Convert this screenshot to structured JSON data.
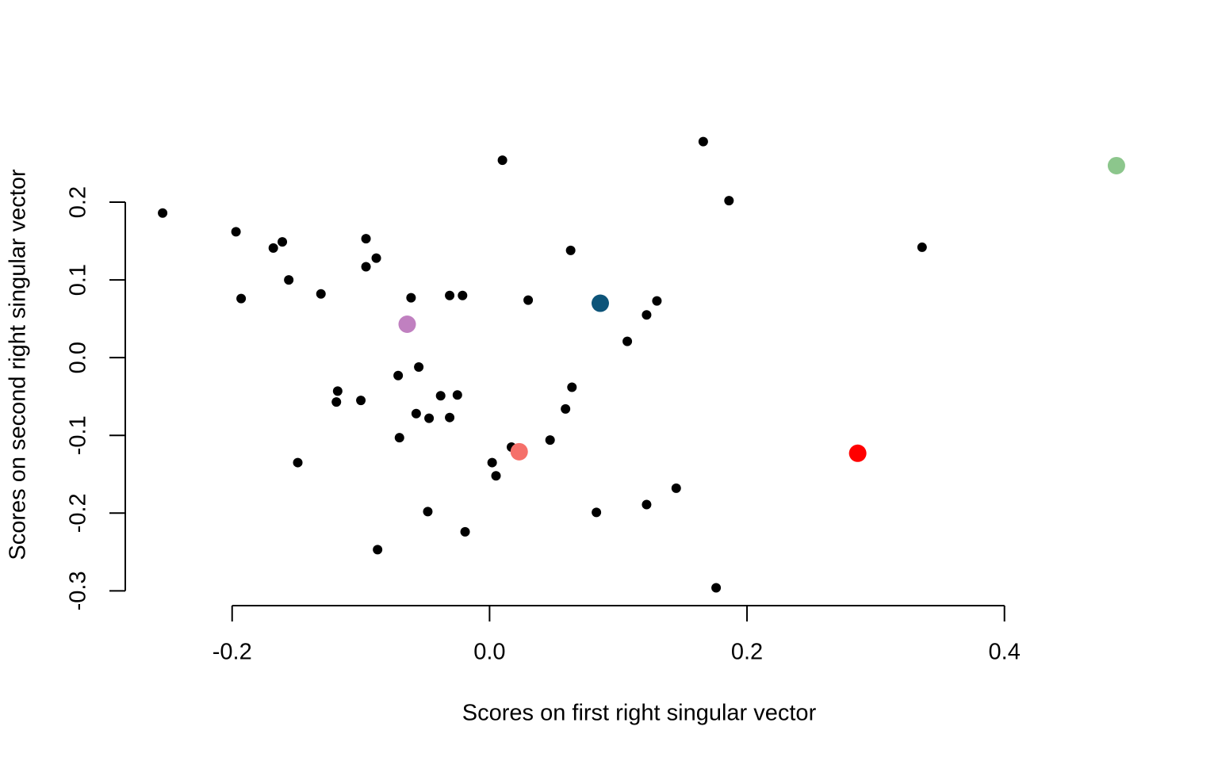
{
  "chart_data": {
    "type": "scatter",
    "x_label": "Scores on first right singular vector",
    "y_label": "Scores on second right singular vector",
    "xlim": [
      -0.283,
      0.516
    ],
    "ylim": [
      -0.319,
      0.3
    ],
    "xticks": [
      {
        "value": -0.2,
        "label": "-0.2"
      },
      {
        "value": 0,
        "label": "0.0"
      },
      {
        "value": 0.2,
        "label": "0.2"
      },
      {
        "value": 0.4,
        "label": "0.4"
      }
    ],
    "yticks": [
      {
        "value": -0.3,
        "label": "-0.3"
      },
      {
        "value": -0.2,
        "label": "-0.2"
      },
      {
        "value": -0.1,
        "label": "-0.1"
      },
      {
        "value": 0,
        "label": "0.0"
      },
      {
        "value": 0.1,
        "label": "0.1"
      },
      {
        "value": 0.2,
        "label": "0.2"
      }
    ],
    "series": [
      {
        "color": "#000000",
        "x": [
          -0.254,
          -0.197,
          -0.193,
          -0.168,
          -0.161,
          -0.156,
          -0.131,
          -0.096,
          -0.096,
          -0.088,
          -0.061,
          -0.031,
          -0.021,
          0.01,
          0.03,
          0.063,
          0.166,
          0.186,
          0.336,
          0.122,
          0.13,
          0.107,
          -0.071,
          -0.055,
          -0.118,
          -0.119,
          -0.1,
          -0.038,
          -0.025,
          -0.057,
          -0.047,
          -0.031,
          0.064,
          0.059,
          -0.07,
          0.047,
          0.017,
          0.002,
          0.005,
          -0.149,
          0.145,
          0.122,
          0.083,
          -0.048,
          -0.019,
          -0.087,
          0.176
        ],
        "values": [
          0.186,
          0.162,
          0.076,
          0.141,
          0.149,
          0.1,
          0.082,
          0.153,
          0.117,
          0.128,
          0.077,
          0.08,
          0.08,
          0.254,
          0.074,
          0.138,
          0.278,
          0.202,
          0.142,
          0.055,
          0.073,
          0.021,
          -0.023,
          -0.012,
          -0.043,
          -0.057,
          -0.055,
          -0.049,
          -0.048,
          -0.072,
          -0.078,
          -0.077,
          -0.038,
          -0.066,
          -0.103,
          -0.106,
          -0.115,
          -0.135,
          -0.152,
          -0.135,
          -0.168,
          -0.189,
          -0.199,
          -0.198,
          -0.224,
          -0.247,
          -0.296
        ]
      },
      {
        "colors": [
          "#c080c0",
          "#0d5479",
          "#f5706a",
          "#ff0000",
          "#8cc68c"
        ],
        "x": [
          -0.064,
          0.086,
          0.023,
          0.286,
          0.487
        ],
        "values": [
          0.043,
          0.07,
          -0.121,
          -0.123,
          0.247
        ]
      }
    ]
  }
}
